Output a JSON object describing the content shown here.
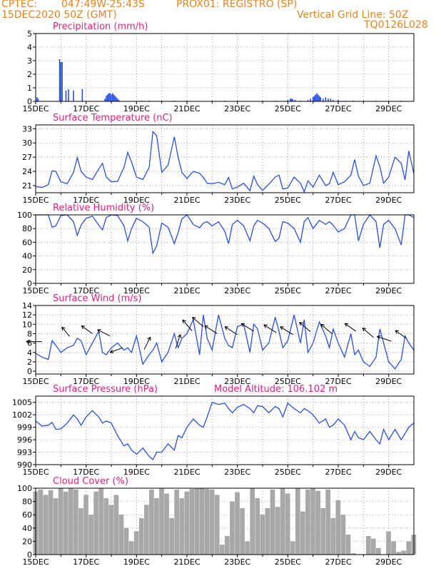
{
  "header": {
    "org": "CPTEC:",
    "coords": "047:49W-25:43S",
    "station": "PROX01: REGISTRO (SP)",
    "datetime": "15DEC2020 50Z (GMT)",
    "grid_note": "Vertical Grid Line: 50Z",
    "code": "TQ0126L028"
  },
  "colors": {
    "header": "#e8821e",
    "title": "#e0207a",
    "line": "#2a4ee8",
    "bar": "#2a4ee8",
    "cloud": "#a8a8a8",
    "wind_arrow": "#000000",
    "grid": "#999999"
  },
  "chart_data": [
    {
      "id": "precip",
      "type": "bar",
      "title": "Precipitation (mm/h)",
      "xlabel": "",
      "ylabel": "",
      "xlim": [
        0,
        15
      ],
      "ylim": [
        0,
        5
      ],
      "yticks": [
        "0",
        "1",
        "2",
        "3",
        "4",
        "5"
      ],
      "xticks": [
        "15DEC",
        "17DEC",
        "19DEC",
        "21DEC",
        "23DEC",
        "25DEC",
        "27DEC",
        "29DEC"
      ],
      "x": [
        0.05,
        0.1,
        0.95,
        1.0,
        1.05,
        1.2,
        1.3,
        1.5,
        1.85,
        2.75,
        2.8,
        2.85,
        2.9,
        2.95,
        3.0,
        3.05,
        3.1,
        3.15,
        3.2,
        3.25,
        3.3,
        4.2,
        4.5,
        5.0,
        5.5,
        6.0,
        7.0,
        7.5,
        8.0,
        9.0,
        9.5,
        10.0,
        10.1,
        10.15,
        10.2,
        10.3,
        10.5,
        10.8,
        10.9,
        11.0,
        11.05,
        11.1,
        11.15,
        11.2,
        11.25,
        11.3,
        11.4,
        11.5,
        11.6,
        11.7,
        11.8,
        12.0,
        12.3,
        12.6,
        13.0,
        13.5,
        14.0,
        14.5
      ],
      "values": [
        0.3,
        0.2,
        3.1,
        2.9,
        2.9,
        0.8,
        0.9,
        0.8,
        0.9,
        0.2,
        0.4,
        0.5,
        0.6,
        0.6,
        0.5,
        0.6,
        0.5,
        0.4,
        0.3,
        0.2,
        0.1,
        0.05,
        0.05,
        0.05,
        0.05,
        0.05,
        0.05,
        0.05,
        0.05,
        0.05,
        0.05,
        0.1,
        0.2,
        0.2,
        0.15,
        0.1,
        0.05,
        0.1,
        0.2,
        0.3,
        0.4,
        0.5,
        0.6,
        0.5,
        0.4,
        0.3,
        0.2,
        0.3,
        0.2,
        0.2,
        0.1,
        0.1,
        0.05,
        0.05,
        0.05,
        0.05,
        0.05,
        0.05
      ]
    },
    {
      "id": "temp",
      "type": "line",
      "title": "Surface Temperature (nC)",
      "xlabel": "",
      "ylabel": "",
      "xlim": [
        0,
        15
      ],
      "ylim": [
        19.5,
        33.8
      ],
      "yticks": [
        "21",
        "24",
        "27",
        "30",
        "33"
      ],
      "ytick_values": [
        21,
        24,
        27,
        30,
        33
      ],
      "xticks": [
        "15DEC",
        "17DEC",
        "19DEC",
        "21DEC",
        "23DEC",
        "25DEC",
        "27DEC",
        "29DEC"
      ],
      "x": [
        0,
        0.25,
        0.5,
        0.65,
        0.8,
        1.0,
        1.25,
        1.5,
        1.65,
        1.8,
        2.0,
        2.25,
        2.5,
        2.65,
        2.8,
        3.0,
        3.25,
        3.5,
        3.65,
        3.8,
        4.0,
        4.25,
        4.5,
        4.65,
        4.8,
        5.0,
        5.25,
        5.5,
        5.65,
        5.8,
        6.0,
        6.25,
        6.5,
        6.65,
        6.8,
        7.0,
        7.25,
        7.5,
        7.65,
        7.8,
        8.0,
        8.25,
        8.5,
        8.65,
        8.8,
        9.0,
        9.25,
        9.5,
        9.65,
        9.8,
        10.0,
        10.25,
        10.5,
        10.65,
        10.8,
        11.0,
        11.25,
        11.5,
        11.65,
        11.8,
        12.0,
        12.25,
        12.5,
        12.65,
        12.8,
        13.0,
        13.25,
        13.5,
        13.65,
        13.8,
        14.0,
        14.25,
        14.5,
        14.65,
        14.8,
        15.0
      ],
      "values": [
        20.8,
        20.6,
        21.2,
        24.1,
        24.0,
        21.8,
        21.4,
        23.8,
        26.9,
        24.0,
        22.8,
        22.3,
        24.5,
        25.7,
        22.8,
        21.8,
        21.9,
        24.8,
        28.0,
        26.0,
        22.8,
        22.3,
        24.8,
        32.4,
        31.5,
        23.8,
        25.3,
        31.3,
        27.0,
        23.8,
        22.5,
        24.0,
        23.6,
        22.7,
        21.5,
        21.4,
        21.7,
        21.2,
        22.7,
        20.3,
        20.7,
        21.5,
        19.9,
        23.0,
        21.2,
        20.0,
        21.3,
        22.8,
        23.2,
        20.3,
        20.5,
        22.8,
        21.5,
        19.7,
        22.0,
        20.7,
        23.2,
        21.0,
        21.4,
        23.8,
        21.2,
        21.8,
        23.2,
        26.5,
        23.0,
        21.0,
        21.5,
        27.3,
        25.0,
        21.5,
        22.8,
        27.0,
        25.7,
        22.2,
        28.3,
        23.5
      ]
    },
    {
      "id": "rh",
      "type": "line",
      "title": "Relative Humidity (%)",
      "xlabel": "",
      "ylabel": "",
      "xlim": [
        0,
        15
      ],
      "ylim": [
        0,
        100
      ],
      "yticks": [
        "0",
        "20",
        "40",
        "60",
        "80",
        "100"
      ],
      "ytick_values": [
        0,
        20,
        40,
        60,
        80,
        100
      ],
      "xticks": [
        "15DEC",
        "17DEC",
        "19DEC",
        "21DEC",
        "23DEC",
        "25DEC",
        "27DEC",
        "29DEC"
      ],
      "x": [
        0,
        0.25,
        0.5,
        0.65,
        0.8,
        1.0,
        1.25,
        1.5,
        1.65,
        1.8,
        2.0,
        2.25,
        2.5,
        2.65,
        2.8,
        3.0,
        3.25,
        3.5,
        3.65,
        3.8,
        4.0,
        4.25,
        4.5,
        4.65,
        4.8,
        5.0,
        5.25,
        5.5,
        5.65,
        5.8,
        6.0,
        6.25,
        6.5,
        6.65,
        6.8,
        7.0,
        7.25,
        7.5,
        7.65,
        7.8,
        8.0,
        8.25,
        8.5,
        8.65,
        8.8,
        9.0,
        9.25,
        9.5,
        9.65,
        9.8,
        10.0,
        10.25,
        10.5,
        10.65,
        10.8,
        11.0,
        11.25,
        11.5,
        11.65,
        11.8,
        12.0,
        12.25,
        12.5,
        12.65,
        12.8,
        13.0,
        13.25,
        13.5,
        13.65,
        13.8,
        14.0,
        14.25,
        14.5,
        14.65,
        14.8,
        15.0
      ],
      "values": [
        100,
        100,
        100,
        82,
        84,
        99,
        100,
        90,
        70,
        85,
        95,
        98,
        85,
        78,
        96,
        100,
        99,
        84,
        62,
        80,
        95,
        90,
        82,
        44,
        55,
        88,
        82,
        58,
        74,
        94,
        100,
        86,
        81,
        88,
        90,
        84,
        90,
        76,
        58,
        86,
        92,
        84,
        62,
        84,
        92,
        88,
        80,
        61,
        66,
        90,
        88,
        80,
        60,
        90,
        96,
        80,
        92,
        86,
        90,
        85,
        75,
        80,
        100,
        100,
        62,
        86,
        100,
        90,
        52,
        86,
        92,
        80,
        56,
        100,
        100,
        96
      ]
    },
    {
      "id": "wind",
      "type": "line",
      "title": "Surface Wind (m/s)",
      "xlabel": "",
      "ylabel": "",
      "xlim": [
        0,
        15
      ],
      "ylim": [
        -0.6,
        14
      ],
      "yticks": [
        "0",
        "2",
        "4",
        "6",
        "8",
        "10",
        "12",
        "14"
      ],
      "ytick_values": [
        0,
        2,
        4,
        6,
        8,
        10,
        12,
        14
      ],
      "xticks": [
        "15DEC",
        "17DEC",
        "19DEC",
        "21DEC",
        "23DEC",
        "25DEC",
        "27DEC",
        "29DEC"
      ],
      "x": [
        0,
        0.25,
        0.5,
        0.65,
        0.8,
        1.0,
        1.25,
        1.5,
        1.65,
        1.8,
        2.0,
        2.25,
        2.5,
        2.65,
        2.8,
        3.0,
        3.25,
        3.5,
        3.65,
        3.8,
        4.0,
        4.25,
        4.5,
        4.65,
        4.8,
        5.0,
        5.25,
        5.5,
        5.65,
        5.8,
        6.0,
        6.25,
        6.5,
        6.65,
        6.8,
        7.0,
        7.25,
        7.5,
        7.65,
        7.8,
        8.0,
        8.25,
        8.5,
        8.65,
        8.8,
        9.0,
        9.25,
        9.5,
        9.65,
        9.8,
        10.0,
        10.25,
        10.5,
        10.65,
        10.8,
        11.0,
        11.25,
        11.5,
        11.65,
        11.8,
        12.0,
        12.25,
        12.5,
        12.65,
        12.8,
        13.0,
        13.25,
        13.5,
        13.65,
        13.8,
        14.0,
        14.25,
        14.5,
        14.65,
        14.8,
        15.0
      ],
      "values": [
        3.8,
        3.0,
        2.5,
        6.5,
        5.5,
        4.0,
        5.0,
        5.5,
        7.0,
        6.5,
        3.5,
        6.0,
        8.5,
        4.0,
        3.5,
        5.0,
        6.0,
        4.5,
        5.0,
        4.0,
        7.5,
        1.5,
        3.5,
        4.5,
        6.0,
        2.0,
        4.0,
        8.0,
        5.0,
        7.0,
        8.0,
        11.0,
        3.5,
        12.0,
        7.0,
        4.5,
        12.0,
        7.0,
        5.5,
        5.0,
        9.5,
        10.0,
        4.0,
        10.0,
        9.0,
        4.5,
        6.0,
        11.5,
        8.5,
        5.0,
        6.5,
        12.0,
        6.0,
        11.0,
        4.0,
        6.0,
        10.5,
        7.5,
        5.0,
        9.0,
        6.0,
        3.0,
        8.0,
        3.5,
        4.5,
        2.0,
        1.0,
        3.0,
        9.0,
        6.0,
        2.0,
        0.5,
        2.5,
        7.5,
        6.0,
        4.5
      ],
      "arrows": [
        {
          "x": 0.25,
          "speed": 6.3,
          "dx": -1.0,
          "dy": 0.0
        },
        {
          "x": 1.35,
          "speed": 7.4,
          "dx": -0.5,
          "dy": 0.6
        },
        {
          "x": 2.25,
          "speed": 8.0,
          "dx": -0.7,
          "dy": 0.5
        },
        {
          "x": 2.95,
          "speed": 7.5,
          "dx": -0.8,
          "dy": 0.4
        },
        {
          "x": 3.45,
          "speed": 5.0,
          "dx": -0.8,
          "dy": -0.3
        },
        {
          "x": 4.3,
          "speed": 4.6,
          "dx": 0.4,
          "dy": 0.8
        },
        {
          "x": 5.55,
          "speed": 4.8,
          "dx": 0.3,
          "dy": 0.9
        },
        {
          "x": 6.2,
          "speed": 8.6,
          "dx": -0.6,
          "dy": 0.7
        },
        {
          "x": 6.65,
          "speed": 9.5,
          "dx": -0.7,
          "dy": 0.6
        },
        {
          "x": 7.2,
          "speed": 8.0,
          "dx": -0.8,
          "dy": 0.5
        },
        {
          "x": 8.0,
          "speed": 7.8,
          "dx": -0.8,
          "dy": 0.5
        },
        {
          "x": 8.65,
          "speed": 8.5,
          "dx": -0.8,
          "dy": 0.5
        },
        {
          "x": 9.55,
          "speed": 8.2,
          "dx": -0.8,
          "dy": 0.5
        },
        {
          "x": 10.2,
          "speed": 7.8,
          "dx": -0.8,
          "dy": 0.5
        },
        {
          "x": 10.9,
          "speed": 8.4,
          "dx": -0.7,
          "dy": 0.6
        },
        {
          "x": 11.75,
          "speed": 8.0,
          "dx": -0.7,
          "dy": 0.6
        },
        {
          "x": 12.7,
          "speed": 8.5,
          "dx": -0.7,
          "dy": 0.5
        },
        {
          "x": 13.4,
          "speed": 7.2,
          "dx": -0.7,
          "dy": 0.6
        },
        {
          "x": 14.1,
          "speed": 6.4,
          "dx": -0.9,
          "dy": 0.3
        },
        {
          "x": 14.7,
          "speed": 7.0,
          "dx": -0.7,
          "dy": 0.5
        }
      ]
    },
    {
      "id": "pressure",
      "type": "line",
      "title": "Surface Pressure (hPa)",
      "annotation": "Model Altitude: 106.102  m",
      "xlabel": "",
      "ylabel": "",
      "xlim": [
        0,
        15
      ],
      "ylim": [
        990,
        1006.5
      ],
      "yticks": [
        "990",
        "993",
        "996",
        "999",
        "1002",
        "1005"
      ],
      "ytick_values": [
        990,
        993,
        996,
        999,
        1002,
        1005
      ],
      "xticks": [
        "15DEC",
        "17DEC",
        "19DEC",
        "21DEC",
        "23DEC",
        "25DEC",
        "27DEC",
        "29DEC"
      ],
      "x": [
        0,
        0.25,
        0.5,
        0.65,
        0.8,
        1.0,
        1.25,
        1.5,
        1.65,
        1.8,
        2.0,
        2.25,
        2.5,
        2.65,
        2.8,
        3.0,
        3.25,
        3.5,
        3.65,
        3.8,
        4.0,
        4.25,
        4.5,
        4.65,
        4.8,
        5.0,
        5.25,
        5.5,
        5.65,
        5.8,
        6.0,
        6.25,
        6.5,
        6.65,
        6.8,
        7.0,
        7.25,
        7.5,
        7.65,
        7.8,
        8.0,
        8.25,
        8.5,
        8.65,
        8.8,
        9.0,
        9.25,
        9.5,
        9.65,
        9.8,
        10.0,
        10.25,
        10.5,
        10.65,
        10.8,
        11.0,
        11.25,
        11.5,
        11.65,
        11.8,
        12.0,
        12.25,
        12.5,
        12.65,
        12.8,
        13.0,
        13.25,
        13.5,
        13.65,
        13.8,
        14.0,
        14.25,
        14.5,
        14.65,
        14.8,
        15.0
      ],
      "values": [
        1000.5,
        999.3,
        999.5,
        1000.2,
        998.5,
        998.6,
        1000.0,
        1002.0,
        1001.0,
        999.5,
        1001.5,
        1003.0,
        1001.5,
        1000.0,
        1000.5,
        1000.0,
        997.0,
        994.5,
        995.0,
        993.5,
        992.5,
        994.0,
        992.0,
        991.2,
        993.0,
        993.0,
        995.0,
        993.5,
        997.0,
        996.5,
        999.0,
        1001.0,
        999.5,
        999.0,
        1001.5,
        1005.0,
        1004.5,
        1004.8,
        1003.5,
        1002.5,
        1003.8,
        1004.5,
        1003.5,
        1002.5,
        1004.2,
        1004.0,
        1002.5,
        1004.0,
        1003.5,
        1001.5,
        1004.8,
        1003.5,
        1002.5,
        1003.5,
        1003.0,
        1002.0,
        1000.0,
        1001.0,
        999.0,
        999.5,
        1001.0,
        999.5,
        996.0,
        998.0,
        996.5,
        996.0,
        998.0,
        996.0,
        995.0,
        998.5,
        996.0,
        998.5,
        996.0,
        997.5,
        999.0,
        1000.0
      ]
    },
    {
      "id": "cloud",
      "type": "area",
      "title": "Cloud Cover (%)",
      "xlabel": "",
      "ylabel": "",
      "xlim": [
        0,
        15
      ],
      "ylim": [
        0,
        100
      ],
      "yticks": [
        "0",
        "20",
        "40",
        "60",
        "80",
        "100"
      ],
      "ytick_values": [
        0,
        20,
        40,
        60,
        80,
        100
      ],
      "xticks": [
        "15DEC",
        "17DEC",
        "19DEC",
        "21DEC",
        "23DEC",
        "25DEC",
        "27DEC",
        "29DEC"
      ],
      "x": [
        0,
        0.2,
        0.4,
        0.6,
        0.8,
        1.0,
        1.2,
        1.4,
        1.6,
        1.8,
        2.0,
        2.2,
        2.4,
        2.6,
        2.8,
        3.0,
        3.2,
        3.4,
        3.6,
        3.8,
        4.0,
        4.2,
        4.4,
        4.6,
        4.8,
        5.0,
        5.2,
        5.4,
        5.6,
        5.8,
        6.0,
        6.2,
        6.4,
        6.6,
        6.8,
        7.0,
        7.2,
        7.4,
        7.6,
        7.8,
        8.0,
        8.2,
        8.4,
        8.6,
        8.8,
        9.0,
        9.2,
        9.4,
        9.6,
        9.8,
        10.0,
        10.2,
        10.4,
        10.6,
        10.8,
        11.0,
        11.2,
        11.4,
        11.6,
        11.8,
        12.0,
        12.2,
        12.4,
        12.6,
        12.8,
        13.0,
        13.2,
        13.4,
        13.6,
        13.8,
        14.0,
        14.2,
        14.4,
        14.6,
        14.8,
        15.0
      ],
      "values": [
        95,
        98,
        90,
        97,
        85,
        100,
        95,
        100,
        98,
        70,
        90,
        60,
        95,
        100,
        85,
        75,
        90,
        60,
        40,
        20,
        35,
        55,
        75,
        98,
        85,
        100,
        92,
        55,
        98,
        85,
        95,
        99,
        100,
        100,
        99,
        98,
        90,
        15,
        28,
        80,
        94,
        70,
        20,
        100,
        85,
        60,
        70,
        98,
        72,
        100,
        92,
        20,
        100,
        65,
        98,
        100,
        96,
        70,
        98,
        55,
        82,
        60,
        30,
        2,
        0,
        0,
        28,
        24,
        10,
        0,
        35,
        20,
        4,
        6,
        20,
        30
      ]
    }
  ]
}
